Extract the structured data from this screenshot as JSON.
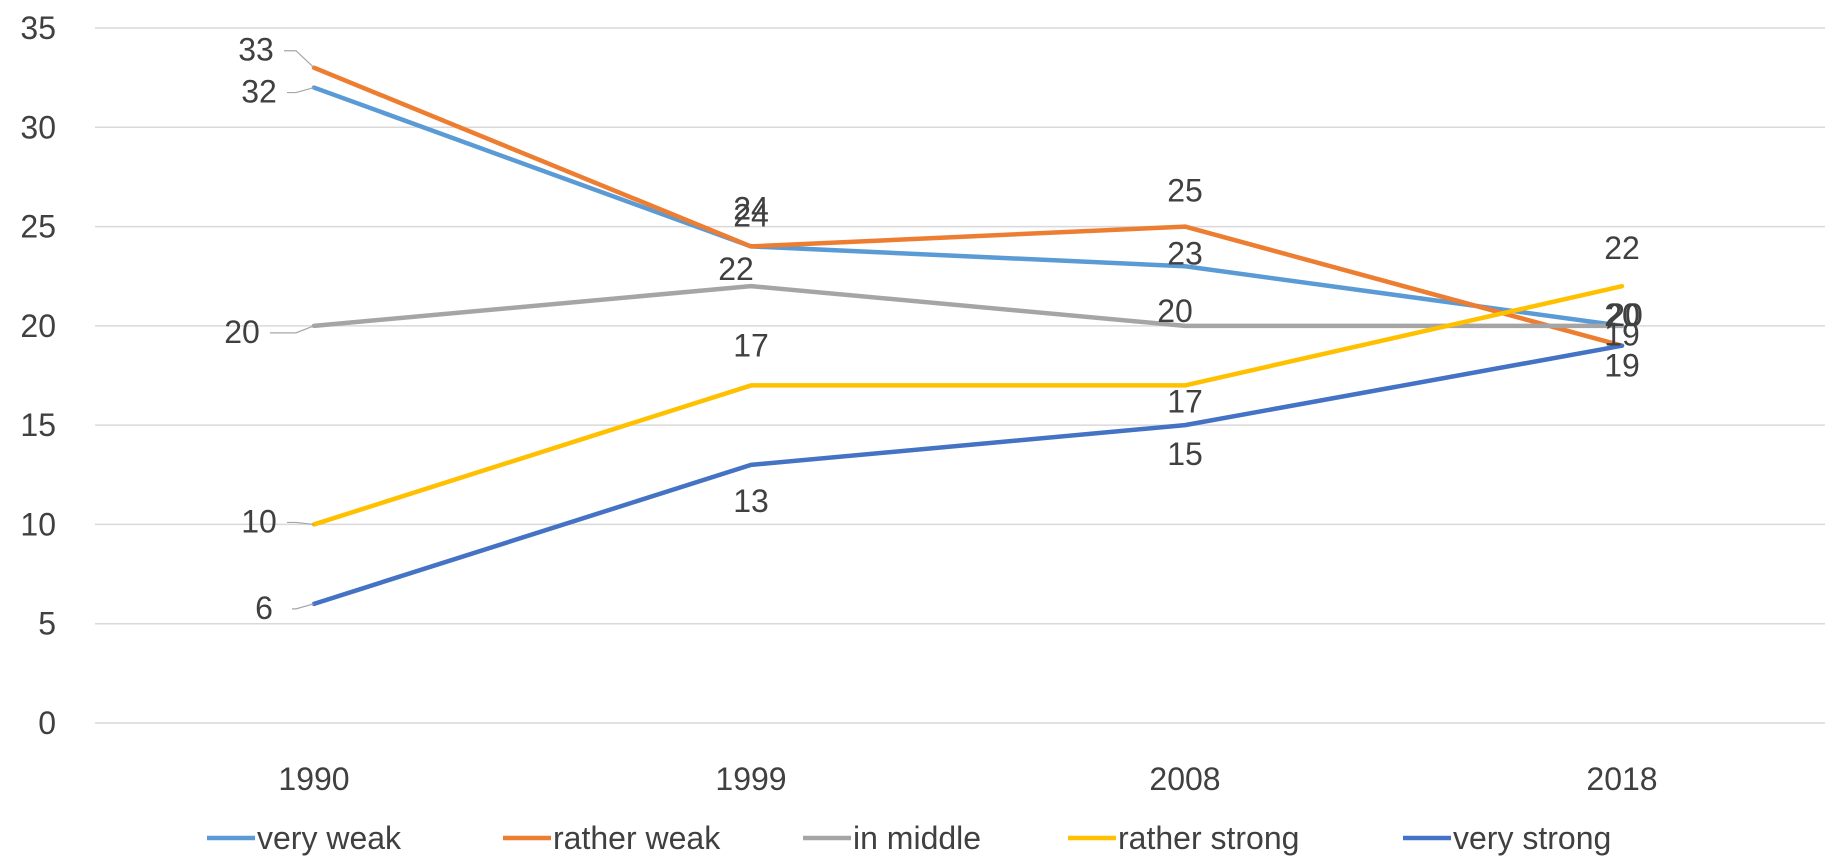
{
  "chart_data": {
    "type": "line",
    "title": "",
    "xlabel": "",
    "ylabel": "",
    "categories": [
      "1990",
      "1999",
      "2008",
      "2018"
    ],
    "ylim": [
      0,
      35
    ],
    "yticks": [
      0,
      5,
      10,
      15,
      20,
      25,
      30,
      35
    ],
    "grid": true,
    "legend_position": "bottom",
    "series": [
      {
        "name": "very weak",
        "color": "#5B9BD5",
        "values": [
          32,
          24,
          23,
          20
        ]
      },
      {
        "name": "rather weak",
        "color": "#ED7D31",
        "values": [
          33,
          24,
          25,
          19
        ]
      },
      {
        "name": "in middle",
        "color": "#A5A5A5",
        "values": [
          20,
          22,
          20,
          20
        ]
      },
      {
        "name": "rather strong",
        "color": "#FFC000",
        "values": [
          10,
          17,
          17,
          22
        ]
      },
      {
        "name": "very strong",
        "color": "#4472C4",
        "values": [
          6,
          13,
          15,
          19
        ]
      }
    ]
  }
}
